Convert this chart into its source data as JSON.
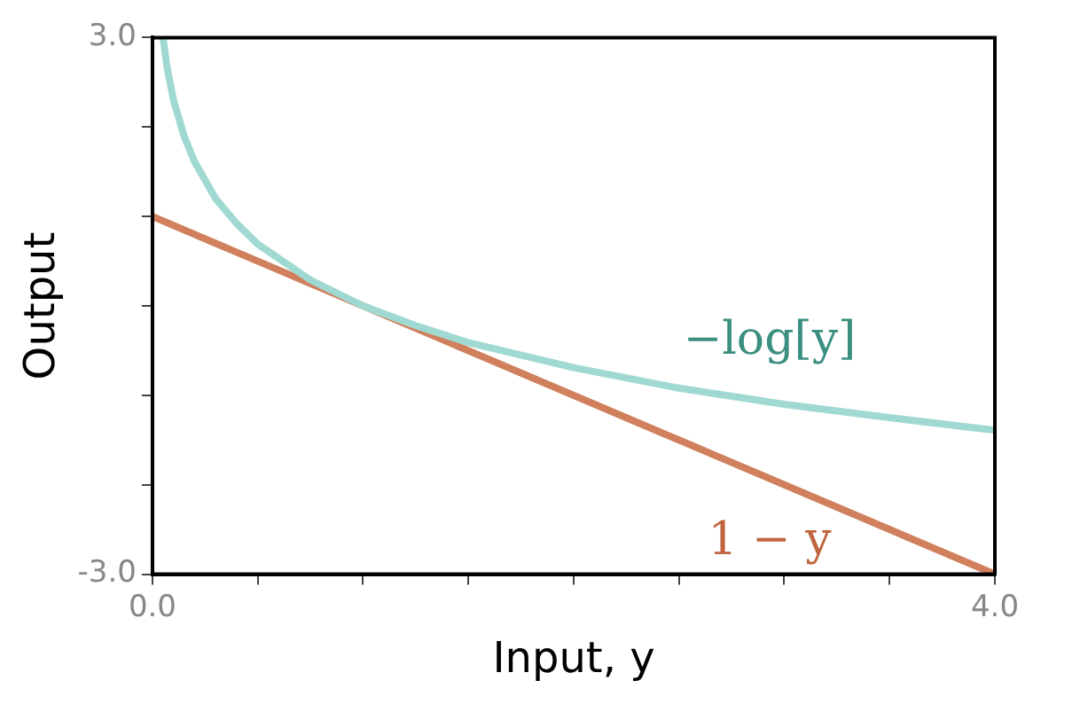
{
  "chart_data": {
    "type": "line",
    "xlabel": "Input, y",
    "ylabel": "Output",
    "xlim": [
      0,
      4
    ],
    "ylim": [
      -3,
      3
    ],
    "xticks": [
      {
        "value": 0,
        "label": "0.0"
      },
      {
        "value": 0.5,
        "label": null
      },
      {
        "value": 1,
        "label": null
      },
      {
        "value": 1.5,
        "label": null
      },
      {
        "value": 2,
        "label": null
      },
      {
        "value": 2.5,
        "label": null
      },
      {
        "value": 3,
        "label": null
      },
      {
        "value": 3.5,
        "label": null
      },
      {
        "value": 4,
        "label": "4.0"
      }
    ],
    "yticks": [
      {
        "value": -3,
        "label": "-3.0"
      },
      {
        "value": -2,
        "label": null
      },
      {
        "value": -1,
        "label": null
      },
      {
        "value": 0,
        "label": null
      },
      {
        "value": 1,
        "label": null
      },
      {
        "value": 2,
        "label": null
      },
      {
        "value": 3,
        "label": "3.0"
      }
    ],
    "grid": false,
    "legend": false,
    "marker": "none",
    "line_style": "solid",
    "series": [
      {
        "name": "−log[y]",
        "color": "#9fd9d1",
        "x": [
          0.05,
          0.07,
          0.1,
          0.15,
          0.2,
          0.3,
          0.4,
          0.5,
          0.75,
          1,
          1.25,
          1.5,
          2,
          2.5,
          3,
          3.5,
          4
        ],
        "values": [
          3.0,
          2.66,
          2.3,
          1.9,
          1.61,
          1.2,
          0.92,
          0.69,
          0.29,
          0,
          -0.22,
          -0.41,
          -0.69,
          -0.92,
          -1.1,
          -1.25,
          -1.39
        ]
      },
      {
        "name": "1 − y",
        "color": "#d0805c",
        "x": [
          0,
          4
        ],
        "values": [
          1,
          -3
        ]
      }
    ]
  }
}
